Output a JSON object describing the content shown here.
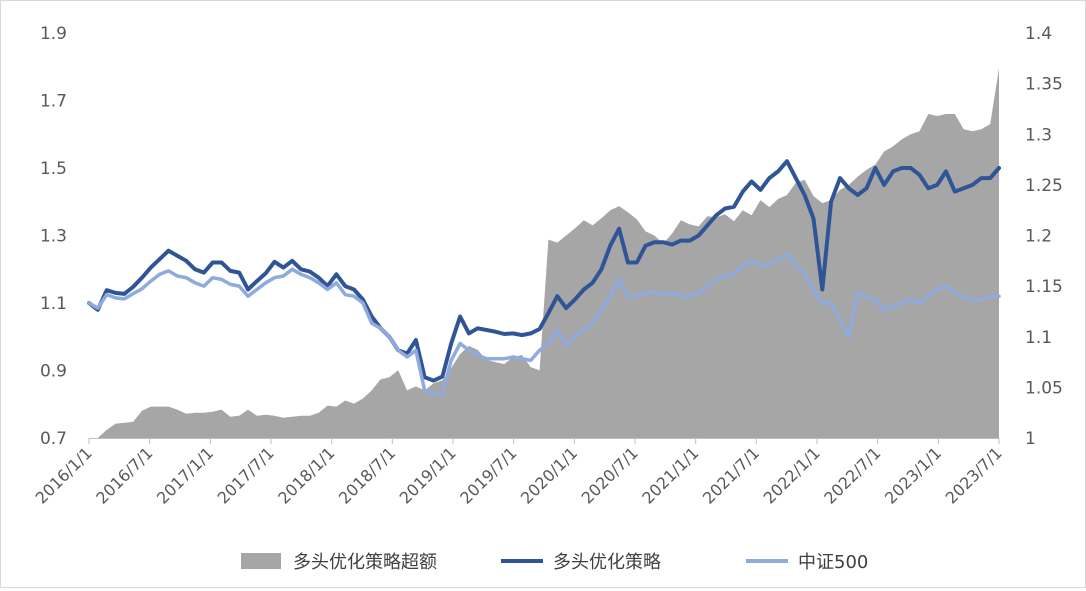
{
  "chart_data": {
    "type": "line",
    "axes": {
      "y_left": {
        "min": 0.7,
        "max": 1.9,
        "ticks": [
          "1.9",
          "1.7",
          "1.5",
          "1.3",
          "1.1",
          "0.9",
          "0.7"
        ]
      },
      "y_right": {
        "min": 1.0,
        "max": 1.4,
        "ticks": [
          "1.4",
          "1.35",
          "1.3",
          "1.25",
          "1.2",
          "1.15",
          "1.1",
          "1.05",
          "1"
        ]
      },
      "x_ticks": [
        "2016/1/1",
        "2016/7/1",
        "2017/1/1",
        "2017/7/1",
        "2018/1/1",
        "2018/7/1",
        "2019/1/1",
        "2019/7/1",
        "2020/1/1",
        "2020/7/1",
        "2021/1/1",
        "2021/7/1",
        "2022/1/1",
        "2022/7/1",
        "2023/1/1",
        "2023/7/1"
      ],
      "grid": false
    },
    "legend": {
      "position": "bottom"
    },
    "series": [
      {
        "name": "多头优化策略超额",
        "type": "area",
        "axis": "right",
        "color": "#a6a6a6",
        "values": [
          [
            0,
            0.992
          ],
          [
            1,
            1.0
          ],
          [
            2,
            1.008
          ],
          [
            3,
            1.014
          ],
          [
            4,
            1.015
          ],
          [
            5,
            1.016
          ],
          [
            6,
            1.027
          ],
          [
            7,
            1.031
          ],
          [
            8,
            1.031
          ],
          [
            9,
            1.031
          ],
          [
            10,
            1.028
          ],
          [
            11,
            1.024
          ],
          [
            12,
            1.025
          ],
          [
            13,
            1.025
          ],
          [
            14,
            1.026
          ],
          [
            15,
            1.028
          ],
          [
            16,
            1.021
          ],
          [
            17,
            1.022
          ],
          [
            18,
            1.028
          ],
          [
            19,
            1.022
          ],
          [
            20,
            1.023
          ],
          [
            21,
            1.022
          ],
          [
            22,
            1.02
          ],
          [
            23,
            1.021
          ],
          [
            24,
            1.022
          ],
          [
            25,
            1.022
          ],
          [
            26,
            1.025
          ],
          [
            27,
            1.032
          ],
          [
            28,
            1.031
          ],
          [
            29,
            1.037
          ],
          [
            30,
            1.034
          ],
          [
            31,
            1.039
          ],
          [
            32,
            1.047
          ],
          [
            33,
            1.058
          ],
          [
            34,
            1.06
          ],
          [
            35,
            1.067
          ],
          [
            36,
            1.047
          ],
          [
            37,
            1.051
          ],
          [
            38,
            1.047
          ],
          [
            39,
            1.054
          ],
          [
            40,
            1.057
          ],
          [
            41,
            1.069
          ],
          [
            42,
            1.083
          ],
          [
            43,
            1.091
          ],
          [
            44,
            1.087
          ],
          [
            45,
            1.077
          ],
          [
            46,
            1.075
          ],
          [
            47,
            1.073
          ],
          [
            48,
            1.08
          ],
          [
            49,
            1.082
          ],
          [
            50,
            1.07
          ],
          [
            51,
            1.067
          ],
          [
            52,
            1.196
          ],
          [
            53,
            1.193
          ],
          [
            54,
            1.2
          ],
          [
            55,
            1.207
          ],
          [
            56,
            1.215
          ],
          [
            57,
            1.21
          ],
          [
            58,
            1.217
          ],
          [
            59,
            1.225
          ],
          [
            60,
            1.229
          ],
          [
            61,
            1.223
          ],
          [
            62,
            1.216
          ],
          [
            63,
            1.204
          ],
          [
            64,
            1.2
          ],
          [
            65,
            1.192
          ],
          [
            66,
            1.202
          ],
          [
            67,
            1.215
          ],
          [
            68,
            1.211
          ],
          [
            69,
            1.209
          ],
          [
            70,
            1.219
          ],
          [
            71,
            1.218
          ],
          [
            72,
            1.221
          ],
          [
            73,
            1.214
          ],
          [
            74,
            1.225
          ],
          [
            75,
            1.22
          ],
          [
            76,
            1.235
          ],
          [
            77,
            1.228
          ],
          [
            78,
            1.236
          ],
          [
            79,
            1.24
          ],
          [
            80,
            1.252
          ],
          [
            81,
            1.255
          ],
          [
            82,
            1.239
          ],
          [
            83,
            1.232
          ],
          [
            84,
            1.235
          ],
          [
            85,
            1.245
          ],
          [
            86,
            1.25
          ],
          [
            87,
            1.258
          ],
          [
            88,
            1.265
          ],
          [
            89,
            1.27
          ],
          [
            90,
            1.283
          ],
          [
            91,
            1.288
          ],
          [
            92,
            1.295
          ],
          [
            93,
            1.3
          ],
          [
            94,
            1.303
          ],
          [
            95,
            1.32
          ],
          [
            96,
            1.318
          ],
          [
            97,
            1.32
          ],
          [
            98,
            1.32
          ],
          [
            99,
            1.305
          ],
          [
            100,
            1.303
          ],
          [
            101,
            1.305
          ],
          [
            102,
            1.31
          ],
          [
            103,
            1.365
          ]
        ]
      },
      {
        "name": "多头优化策略",
        "type": "line",
        "axis": "left",
        "color": "#2f5597",
        "values": [
          [
            0,
            1.1
          ],
          [
            1,
            1.08
          ],
          [
            2,
            1.138
          ],
          [
            3,
            1.13
          ],
          [
            4,
            1.127
          ],
          [
            5,
            1.148
          ],
          [
            6,
            1.175
          ],
          [
            7,
            1.205
          ],
          [
            8,
            1.23
          ],
          [
            9,
            1.255
          ],
          [
            10,
            1.24
          ],
          [
            11,
            1.225
          ],
          [
            12,
            1.2
          ],
          [
            13,
            1.19
          ],
          [
            14,
            1.22
          ],
          [
            15,
            1.22
          ],
          [
            16,
            1.195
          ],
          [
            17,
            1.19
          ],
          [
            18,
            1.14
          ],
          [
            19,
            1.165
          ],
          [
            20,
            1.188
          ],
          [
            21,
            1.222
          ],
          [
            22,
            1.205
          ],
          [
            23,
            1.225
          ],
          [
            24,
            1.2
          ],
          [
            25,
            1.193
          ],
          [
            26,
            1.175
          ],
          [
            27,
            1.15
          ],
          [
            28,
            1.185
          ],
          [
            29,
            1.15
          ],
          [
            30,
            1.14
          ],
          [
            31,
            1.11
          ],
          [
            32,
            1.06
          ],
          [
            33,
            1.025
          ],
          [
            34,
            1.0
          ],
          [
            35,
            0.96
          ],
          [
            36,
            0.95
          ],
          [
            37,
            0.99
          ],
          [
            38,
            0.88
          ],
          [
            39,
            0.87
          ],
          [
            40,
            0.882
          ],
          [
            41,
            0.98
          ],
          [
            42,
            1.06
          ],
          [
            43,
            1.01
          ],
          [
            44,
            1.025
          ],
          [
            45,
            1.02
          ],
          [
            46,
            1.015
          ],
          [
            47,
            1.008
          ],
          [
            48,
            1.01
          ],
          [
            49,
            1.005
          ],
          [
            50,
            1.01
          ],
          [
            51,
            1.023
          ],
          [
            52,
            1.07
          ],
          [
            53,
            1.12
          ],
          [
            54,
            1.085
          ],
          [
            55,
            1.11
          ],
          [
            56,
            1.14
          ],
          [
            57,
            1.16
          ],
          [
            58,
            1.2
          ],
          [
            59,
            1.27
          ],
          [
            60,
            1.32
          ],
          [
            61,
            1.22
          ],
          [
            62,
            1.22
          ],
          [
            63,
            1.27
          ],
          [
            64,
            1.28
          ],
          [
            65,
            1.28
          ],
          [
            66,
            1.273
          ],
          [
            67,
            1.285
          ],
          [
            68,
            1.285
          ],
          [
            69,
            1.3
          ],
          [
            70,
            1.33
          ],
          [
            71,
            1.36
          ],
          [
            72,
            1.38
          ],
          [
            73,
            1.385
          ],
          [
            74,
            1.43
          ],
          [
            75,
            1.46
          ],
          [
            76,
            1.435
          ],
          [
            77,
            1.47
          ],
          [
            78,
            1.49
          ],
          [
            79,
            1.52
          ],
          [
            80,
            1.47
          ],
          [
            81,
            1.42
          ],
          [
            82,
            1.35
          ],
          [
            83,
            1.14
          ],
          [
            84,
            1.4
          ],
          [
            85,
            1.47
          ],
          [
            86,
            1.44
          ],
          [
            87,
            1.42
          ],
          [
            88,
            1.44
          ],
          [
            89,
            1.5
          ],
          [
            90,
            1.45
          ],
          [
            91,
            1.49
          ],
          [
            92,
            1.5
          ],
          [
            93,
            1.5
          ],
          [
            94,
            1.48
          ],
          [
            95,
            1.44
          ],
          [
            96,
            1.45
          ],
          [
            97,
            1.49
          ],
          [
            98,
            1.43
          ],
          [
            99,
            1.44
          ],
          [
            100,
            1.45
          ],
          [
            101,
            1.47
          ],
          [
            102,
            1.47
          ],
          [
            103,
            1.5
          ]
        ]
      },
      {
        "name": "中证500",
        "type": "line",
        "axis": "left",
        "color": "#8faadc",
        "values": [
          [
            0,
            1.1
          ],
          [
            1,
            1.085
          ],
          [
            2,
            1.125
          ],
          [
            3,
            1.115
          ],
          [
            4,
            1.112
          ],
          [
            5,
            1.128
          ],
          [
            6,
            1.142
          ],
          [
            7,
            1.165
          ],
          [
            8,
            1.185
          ],
          [
            9,
            1.195
          ],
          [
            10,
            1.18
          ],
          [
            11,
            1.175
          ],
          [
            12,
            1.16
          ],
          [
            13,
            1.15
          ],
          [
            14,
            1.175
          ],
          [
            15,
            1.17
          ],
          [
            16,
            1.155
          ],
          [
            17,
            1.15
          ],
          [
            18,
            1.12
          ],
          [
            19,
            1.14
          ],
          [
            20,
            1.16
          ],
          [
            21,
            1.175
          ],
          [
            22,
            1.18
          ],
          [
            23,
            1.2
          ],
          [
            24,
            1.185
          ],
          [
            25,
            1.175
          ],
          [
            26,
            1.16
          ],
          [
            27,
            1.14
          ],
          [
            28,
            1.16
          ],
          [
            29,
            1.125
          ],
          [
            30,
            1.12
          ],
          [
            31,
            1.1
          ],
          [
            32,
            1.04
          ],
          [
            33,
            1.025
          ],
          [
            34,
            1.0
          ],
          [
            35,
            0.96
          ],
          [
            36,
            0.94
          ],
          [
            37,
            0.96
          ],
          [
            38,
            0.84
          ],
          [
            39,
            0.83
          ],
          [
            40,
            0.83
          ],
          [
            41,
            0.93
          ],
          [
            42,
            0.98
          ],
          [
            43,
            0.96
          ],
          [
            44,
            0.945
          ],
          [
            45,
            0.935
          ],
          [
            46,
            0.935
          ],
          [
            47,
            0.935
          ],
          [
            48,
            0.94
          ],
          [
            49,
            0.935
          ],
          [
            50,
            0.93
          ],
          [
            51,
            0.96
          ],
          [
            52,
            0.98
          ],
          [
            53,
            1.02
          ],
          [
            54,
            0.975
          ],
          [
            55,
            1.0
          ],
          [
            56,
            1.02
          ],
          [
            57,
            1.04
          ],
          [
            58,
            1.08
          ],
          [
            59,
            1.12
          ],
          [
            60,
            1.17
          ],
          [
            61,
            1.12
          ],
          [
            62,
            1.12
          ],
          [
            63,
            1.13
          ],
          [
            64,
            1.13
          ],
          [
            65,
            1.125
          ],
          [
            66,
            1.13
          ],
          [
            67,
            1.12
          ],
          [
            68,
            1.12
          ],
          [
            69,
            1.13
          ],
          [
            70,
            1.15
          ],
          [
            71,
            1.17
          ],
          [
            72,
            1.18
          ],
          [
            73,
            1.185
          ],
          [
            74,
            1.21
          ],
          [
            75,
            1.225
          ],
          [
            76,
            1.21
          ],
          [
            77,
            1.215
          ],
          [
            78,
            1.23
          ],
          [
            79,
            1.245
          ],
          [
            80,
            1.21
          ],
          [
            81,
            1.19
          ],
          [
            82,
            1.14
          ],
          [
            83,
            1.1
          ],
          [
            84,
            1.1
          ],
          [
            85,
            1.05
          ],
          [
            86,
            1.0
          ],
          [
            87,
            1.13
          ],
          [
            88,
            1.12
          ],
          [
            89,
            1.11
          ],
          [
            90,
            1.08
          ],
          [
            91,
            1.09
          ],
          [
            92,
            1.1
          ],
          [
            93,
            1.11
          ],
          [
            94,
            1.1
          ],
          [
            95,
            1.12
          ],
          [
            96,
            1.14
          ],
          [
            97,
            1.15
          ],
          [
            98,
            1.13
          ],
          [
            99,
            1.12
          ],
          [
            100,
            1.11
          ],
          [
            101,
            1.11
          ],
          [
            102,
            1.12
          ],
          [
            103,
            1.12
          ]
        ]
      }
    ]
  }
}
